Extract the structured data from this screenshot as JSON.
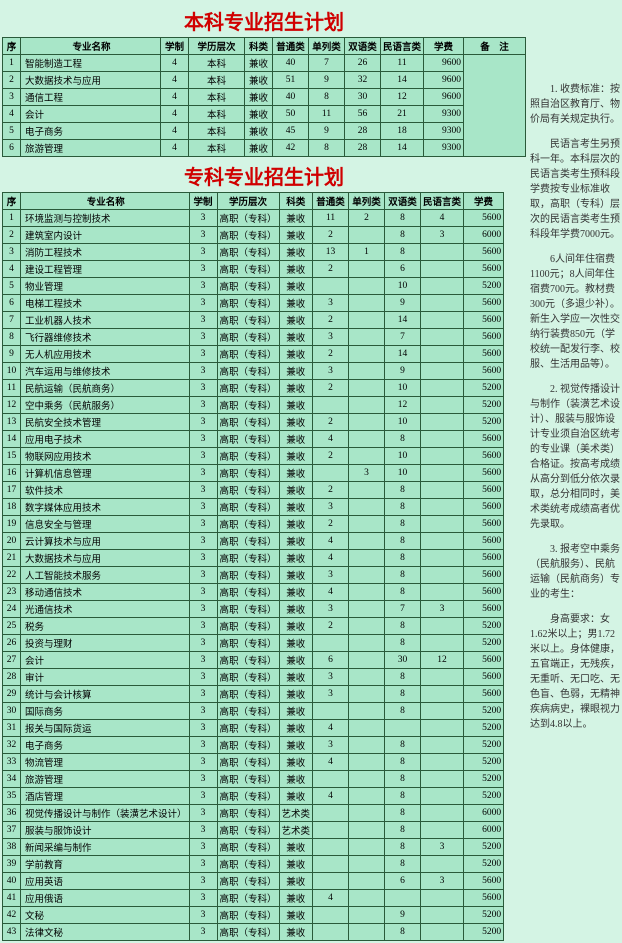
{
  "titles": {
    "t1": "本科专业招生计划",
    "t2": "专科专业招生计划"
  },
  "headers": {
    "seq": "序",
    "name": "专业名称",
    "xz": "学制",
    "lvl": "学历层次",
    "kl": "科类",
    "pt": "普通类",
    "dl": "单列类",
    "sy": "双语类",
    "my": "民语言类",
    "fee": "学费",
    "bz": "备　注"
  },
  "bk": [
    [
      "1",
      "智能制造工程",
      "4",
      "本科",
      "兼收",
      "40",
      "7",
      "26",
      "11",
      "9600"
    ],
    [
      "2",
      "大数据技术与应用",
      "4",
      "本科",
      "兼收",
      "51",
      "9",
      "32",
      "14",
      "9600"
    ],
    [
      "3",
      "通信工程",
      "4",
      "本科",
      "兼收",
      "40",
      "8",
      "30",
      "12",
      "9600"
    ],
    [
      "4",
      "会计",
      "4",
      "本科",
      "兼收",
      "50",
      "11",
      "56",
      "21",
      "9300"
    ],
    [
      "5",
      "电子商务",
      "4",
      "本科",
      "兼收",
      "45",
      "9",
      "28",
      "18",
      "9300"
    ],
    [
      "6",
      "旅游管理",
      "4",
      "本科",
      "兼收",
      "42",
      "8",
      "28",
      "14",
      "9300"
    ]
  ],
  "zk": [
    [
      "1",
      "环境监测与控制技术",
      "3",
      "高职（专科）",
      "兼收",
      "11",
      "2",
      "8",
      "4",
      "5600"
    ],
    [
      "2",
      "建筑室内设计",
      "3",
      "高职（专科）",
      "兼收",
      "2",
      "",
      "8",
      "3",
      "6000"
    ],
    [
      "3",
      "消防工程技术",
      "3",
      "高职（专科）",
      "兼收",
      "13",
      "1",
      "8",
      "",
      "5600"
    ],
    [
      "4",
      "建设工程管理",
      "3",
      "高职（专科）",
      "兼收",
      "2",
      "",
      "6",
      "",
      "5600"
    ],
    [
      "5",
      "物业管理",
      "3",
      "高职（专科）",
      "兼收",
      "",
      "",
      "10",
      "",
      "5200"
    ],
    [
      "6",
      "电梯工程技术",
      "3",
      "高职（专科）",
      "兼收",
      "3",
      "",
      "9",
      "",
      "5600"
    ],
    [
      "7",
      "工业机器人技术",
      "3",
      "高职（专科）",
      "兼收",
      "2",
      "",
      "14",
      "",
      "5600"
    ],
    [
      "8",
      "飞行器维修技术",
      "3",
      "高职（专科）",
      "兼收",
      "3",
      "",
      "7",
      "",
      "5600"
    ],
    [
      "9",
      "无人机应用技术",
      "3",
      "高职（专科）",
      "兼收",
      "2",
      "",
      "14",
      "",
      "5600"
    ],
    [
      "10",
      "汽车运用与维修技术",
      "3",
      "高职（专科）",
      "兼收",
      "3",
      "",
      "9",
      "",
      "5600"
    ],
    [
      "11",
      "民航运输（民航商务）",
      "3",
      "高职（专科）",
      "兼收",
      "2",
      "",
      "10",
      "",
      "5200"
    ],
    [
      "12",
      "空中乘务（民航服务）",
      "3",
      "高职（专科）",
      "兼收",
      "",
      "",
      "12",
      "",
      "5200"
    ],
    [
      "13",
      "民航安全技术管理",
      "3",
      "高职（专科）",
      "兼收",
      "2",
      "",
      "10",
      "",
      "5200"
    ],
    [
      "14",
      "应用电子技术",
      "3",
      "高职（专科）",
      "兼收",
      "4",
      "",
      "8",
      "",
      "5600"
    ],
    [
      "15",
      "物联网应用技术",
      "3",
      "高职（专科）",
      "兼收",
      "2",
      "",
      "10",
      "",
      "5600"
    ],
    [
      "16",
      "计算机信息管理",
      "3",
      "高职（专科）",
      "兼收",
      "",
      "3",
      "10",
      "",
      "5600"
    ],
    [
      "17",
      "软件技术",
      "3",
      "高职（专科）",
      "兼收",
      "2",
      "",
      "8",
      "",
      "5600"
    ],
    [
      "18",
      "数字媒体应用技术",
      "3",
      "高职（专科）",
      "兼收",
      "3",
      "",
      "8",
      "",
      "5600"
    ],
    [
      "19",
      "信息安全与管理",
      "3",
      "高职（专科）",
      "兼收",
      "2",
      "",
      "8",
      "",
      "5600"
    ],
    [
      "20",
      "云计算技术与应用",
      "3",
      "高职（专科）",
      "兼收",
      "4",
      "",
      "8",
      "",
      "5600"
    ],
    [
      "21",
      "大数据技术与应用",
      "3",
      "高职（专科）",
      "兼收",
      "4",
      "",
      "8",
      "",
      "5600"
    ],
    [
      "22",
      "人工智能技术服务",
      "3",
      "高职（专科）",
      "兼收",
      "3",
      "",
      "8",
      "",
      "5600"
    ],
    [
      "23",
      "移动通信技术",
      "3",
      "高职（专科）",
      "兼收",
      "4",
      "",
      "8",
      "",
      "5600"
    ],
    [
      "24",
      "光通信技术",
      "3",
      "高职（专科）",
      "兼收",
      "3",
      "",
      "7",
      "3",
      "5600"
    ],
    [
      "25",
      "税务",
      "3",
      "高职（专科）",
      "兼收",
      "2",
      "",
      "8",
      "",
      "5200"
    ],
    [
      "26",
      "投资与理财",
      "3",
      "高职（专科）",
      "兼收",
      "",
      "",
      "8",
      "",
      "5200"
    ],
    [
      "27",
      "会计",
      "3",
      "高职（专科）",
      "兼收",
      "6",
      "",
      "30",
      "12",
      "5600"
    ],
    [
      "28",
      "审计",
      "3",
      "高职（专科）",
      "兼收",
      "3",
      "",
      "8",
      "",
      "5600"
    ],
    [
      "29",
      "统计与会计核算",
      "3",
      "高职（专科）",
      "兼收",
      "3",
      "",
      "8",
      "",
      "5600"
    ],
    [
      "30",
      "国际商务",
      "3",
      "高职（专科）",
      "兼收",
      "",
      "",
      "8",
      "",
      "5200"
    ],
    [
      "31",
      "报关与国际货运",
      "3",
      "高职（专科）",
      "兼收",
      "4",
      "",
      "",
      "",
      "5200"
    ],
    [
      "32",
      "电子商务",
      "3",
      "高职（专科）",
      "兼收",
      "3",
      "",
      "8",
      "",
      "5200"
    ],
    [
      "33",
      "物流管理",
      "3",
      "高职（专科）",
      "兼收",
      "4",
      "",
      "8",
      "",
      "5200"
    ],
    [
      "34",
      "旅游管理",
      "3",
      "高职（专科）",
      "兼收",
      "",
      "",
      "8",
      "",
      "5200"
    ],
    [
      "35",
      "酒店管理",
      "3",
      "高职（专科）",
      "兼收",
      "4",
      "",
      "8",
      "",
      "5200"
    ],
    [
      "36",
      "视觉传播设计与制作（装潢艺术设计）",
      "3",
      "高职（专科）",
      "艺术类",
      "",
      "",
      "8",
      "",
      "6000"
    ],
    [
      "37",
      "服装与服饰设计",
      "3",
      "高职（专科）",
      "艺术类",
      "",
      "",
      "8",
      "",
      "6000"
    ],
    [
      "38",
      "新闻采编与制作",
      "3",
      "高职（专科）",
      "兼收",
      "",
      "",
      "8",
      "3",
      "5200"
    ],
    [
      "39",
      "学前教育",
      "3",
      "高职（专科）",
      "兼收",
      "",
      "",
      "8",
      "",
      "5200"
    ],
    [
      "40",
      "应用英语",
      "3",
      "高职（专科）",
      "兼收",
      "",
      "",
      "6",
      "3",
      "5600"
    ],
    [
      "41",
      "应用俄语",
      "3",
      "高职（专科）",
      "兼收",
      "4",
      "",
      "",
      "",
      "5600"
    ],
    [
      "42",
      "文秘",
      "3",
      "高职（专科）",
      "兼收",
      "",
      "",
      "9",
      "",
      "5200"
    ],
    [
      "43",
      "法律文秘",
      "3",
      "高职（专科）",
      "兼收",
      "",
      "",
      "8",
      "",
      "5200"
    ]
  ],
  "notes": {
    "n1": "1. 收费标准：按照自治区教育厅、物价局有关规定执行。",
    "n2": "民语言考生另预科一年。本科层次的民语言类考生预科段学费按专业标准收取，高职（专科）层次的民语言类考生预科段年学费7000元。",
    "n3": "6人间年住宿费1100元；8人间年住宿费700元。教材费300元（多退少补）。新生入学应一次性交纳行装费850元（学校统一配发行李、校服、生活用品等）。",
    "n4": "2. 视觉传播设计与制作（装潢艺术设计）、服装与服饰设计专业须自治区统考的专业课（美术类）合格证。按高考成绩从高分到低分依次录取，总分相同时，美术类统考成绩高者优先录取。",
    "n5": "3. 报考空中乘务（民航服务）、民航运输（民航商务）专业的考生：",
    "n6": "身高要求：女1.62米以上；男1.72米以上。身体健康，五官端正，无残疾，无重听、无口吃、无色盲、色弱，无精神疾病病史，裸眼视力达到4.8以上。"
  }
}
